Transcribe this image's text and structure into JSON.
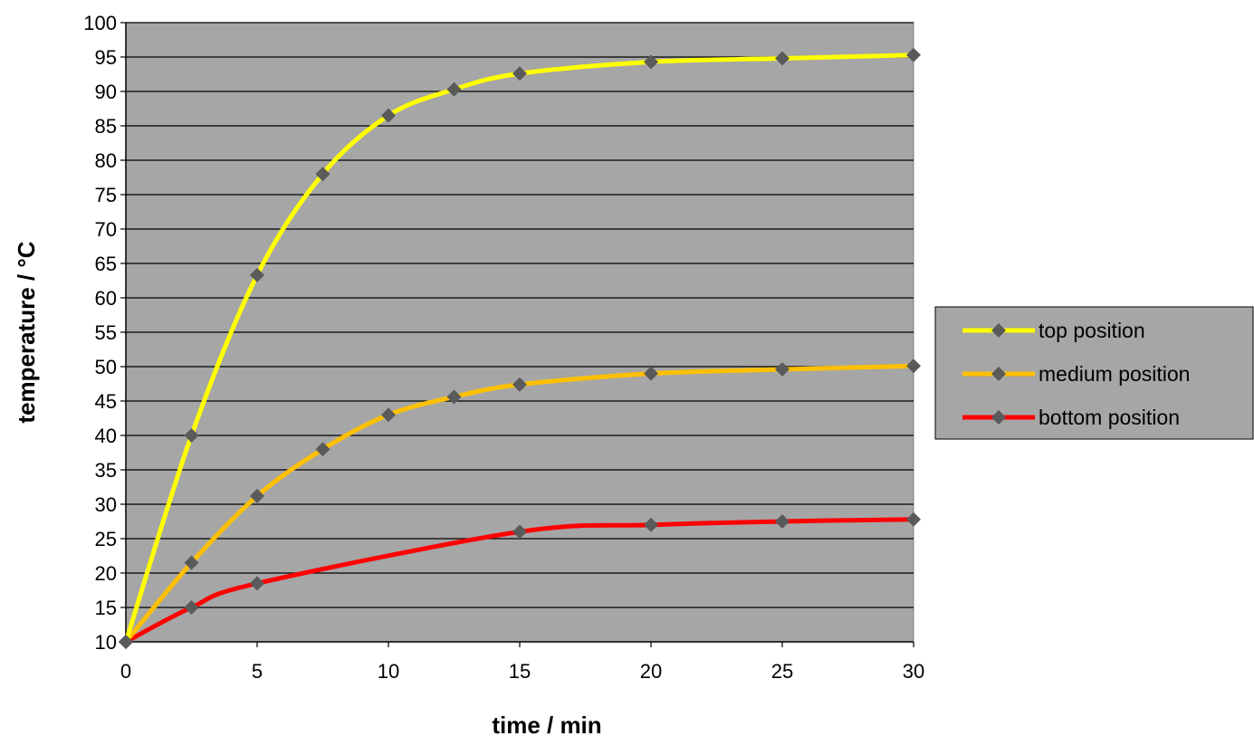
{
  "chart_data": {
    "type": "line",
    "title": "",
    "xlabel": "time / min",
    "ylabel": "temperature / °C",
    "xlim": [
      0,
      30
    ],
    "ylim": [
      10,
      100
    ],
    "xticks": [
      0,
      5,
      10,
      15,
      20,
      25,
      30
    ],
    "yticks": [
      10,
      15,
      20,
      25,
      30,
      35,
      40,
      45,
      50,
      55,
      60,
      65,
      70,
      75,
      80,
      85,
      90,
      95,
      100
    ],
    "grid": "horizontal",
    "plot_background": "#a6a6a6",
    "marker_color": "#5a5a5a",
    "legend_placement": "right",
    "series": [
      {
        "name": "top position",
        "color": "#ffff00",
        "x": [
          0,
          2.5,
          5,
          7.5,
          10,
          12.5,
          15,
          20,
          25,
          30
        ],
        "y": [
          10,
          40,
          63.3,
          78,
          86.5,
          90.3,
          92.6,
          94.3,
          94.8,
          95.3
        ]
      },
      {
        "name": "medium position",
        "color": "#ffc000",
        "x": [
          0,
          2.5,
          5,
          7.5,
          10,
          12.5,
          15,
          20,
          25,
          30
        ],
        "y": [
          10,
          21.5,
          31.2,
          38,
          43,
          45.6,
          47.4,
          49,
          49.6,
          50.1
        ]
      },
      {
        "name": "bottom position",
        "color": "#ff0000",
        "x": [
          0,
          2.5,
          5,
          15,
          20,
          25,
          30
        ],
        "y": [
          10,
          15,
          18.5,
          26,
          27,
          27.5,
          27.8
        ]
      }
    ]
  }
}
